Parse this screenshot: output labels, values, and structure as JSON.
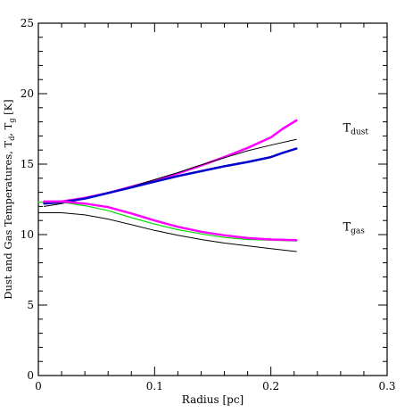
{
  "chart_data": {
    "type": "line",
    "xlabel": "Radius [pc]",
    "ylabel_prefix": "Dust and Gas Temperatures, T",
    "ylabel_sub_d": "d",
    "ylabel_sep": ", T",
    "ylabel_sub_g": "g",
    "ylabel_suffix": " [K]",
    "xlim": [
      0,
      0.3
    ],
    "ylim": [
      0,
      25
    ],
    "xticks": [
      0,
      0.1,
      0.2,
      0.3
    ],
    "xtick_labels": [
      "0",
      "0.1",
      "0.2",
      "0.3"
    ],
    "yticks": [
      0,
      5,
      10,
      15,
      20,
      25
    ],
    "ytick_labels": [
      "0",
      "5",
      "10",
      "15",
      "20",
      "25"
    ],
    "x_minor_step": 0.02,
    "y_minor_step": 1,
    "grid": false,
    "annotations": [
      {
        "main": "T",
        "sub": "dust",
        "x": 0.262,
        "y": 17.3
      },
      {
        "main": "T",
        "sub": "gas",
        "x": 0.262,
        "y": 10.3
      }
    ],
    "series": [
      {
        "color": "#ff00ff",
        "width": 2.5,
        "x": [
          0.005,
          0.02,
          0.04,
          0.06,
          0.08,
          0.1,
          0.12,
          0.14,
          0.16,
          0.18,
          0.2,
          0.21,
          0.222
        ],
        "y": [
          12.3,
          12.35,
          12.6,
          12.95,
          13.4,
          13.85,
          14.35,
          14.9,
          15.5,
          16.15,
          16.9,
          17.5,
          18.1
        ]
      },
      {
        "color": "#000000",
        "width": 1,
        "x": [
          0.005,
          0.02,
          0.04,
          0.06,
          0.08,
          0.1,
          0.12,
          0.14,
          0.16,
          0.18,
          0.2,
          0.222
        ],
        "y": [
          12.0,
          12.2,
          12.55,
          12.95,
          13.4,
          13.9,
          14.4,
          14.95,
          15.45,
          15.95,
          16.35,
          16.75
        ]
      },
      {
        "color": "#0000cc",
        "width": 2.5,
        "x": [
          0.005,
          0.02,
          0.04,
          0.06,
          0.08,
          0.1,
          0.12,
          0.14,
          0.16,
          0.18,
          0.2,
          0.21,
          0.222
        ],
        "y": [
          12.2,
          12.3,
          12.55,
          12.95,
          13.35,
          13.75,
          14.15,
          14.5,
          14.85,
          15.15,
          15.5,
          15.8,
          16.1
        ]
      },
      {
        "color": "#000000",
        "width": 1,
        "x": [
          0.0,
          0.02,
          0.04,
          0.06,
          0.08,
          0.1,
          0.12,
          0.14,
          0.16,
          0.18,
          0.2,
          0.222
        ],
        "y": [
          11.55,
          11.55,
          11.4,
          11.1,
          10.7,
          10.3,
          9.95,
          9.65,
          9.4,
          9.2,
          9.0,
          8.8
        ]
      },
      {
        "color": "#00dd00",
        "width": 1.2,
        "x": [
          0.0,
          0.02,
          0.04,
          0.06,
          0.08,
          0.1,
          0.12,
          0.14,
          0.16,
          0.18,
          0.2,
          0.222
        ],
        "y": [
          12.3,
          12.3,
          12.05,
          11.7,
          11.2,
          10.75,
          10.35,
          10.05,
          9.8,
          9.65,
          9.6,
          9.55
        ]
      },
      {
        "color": "#ff00ff",
        "width": 2.5,
        "x": [
          0.005,
          0.02,
          0.04,
          0.06,
          0.08,
          0.1,
          0.12,
          0.14,
          0.16,
          0.18,
          0.2,
          0.222
        ],
        "y": [
          12.35,
          12.35,
          12.2,
          11.95,
          11.5,
          11.0,
          10.55,
          10.2,
          9.95,
          9.75,
          9.65,
          9.6
        ]
      }
    ]
  }
}
